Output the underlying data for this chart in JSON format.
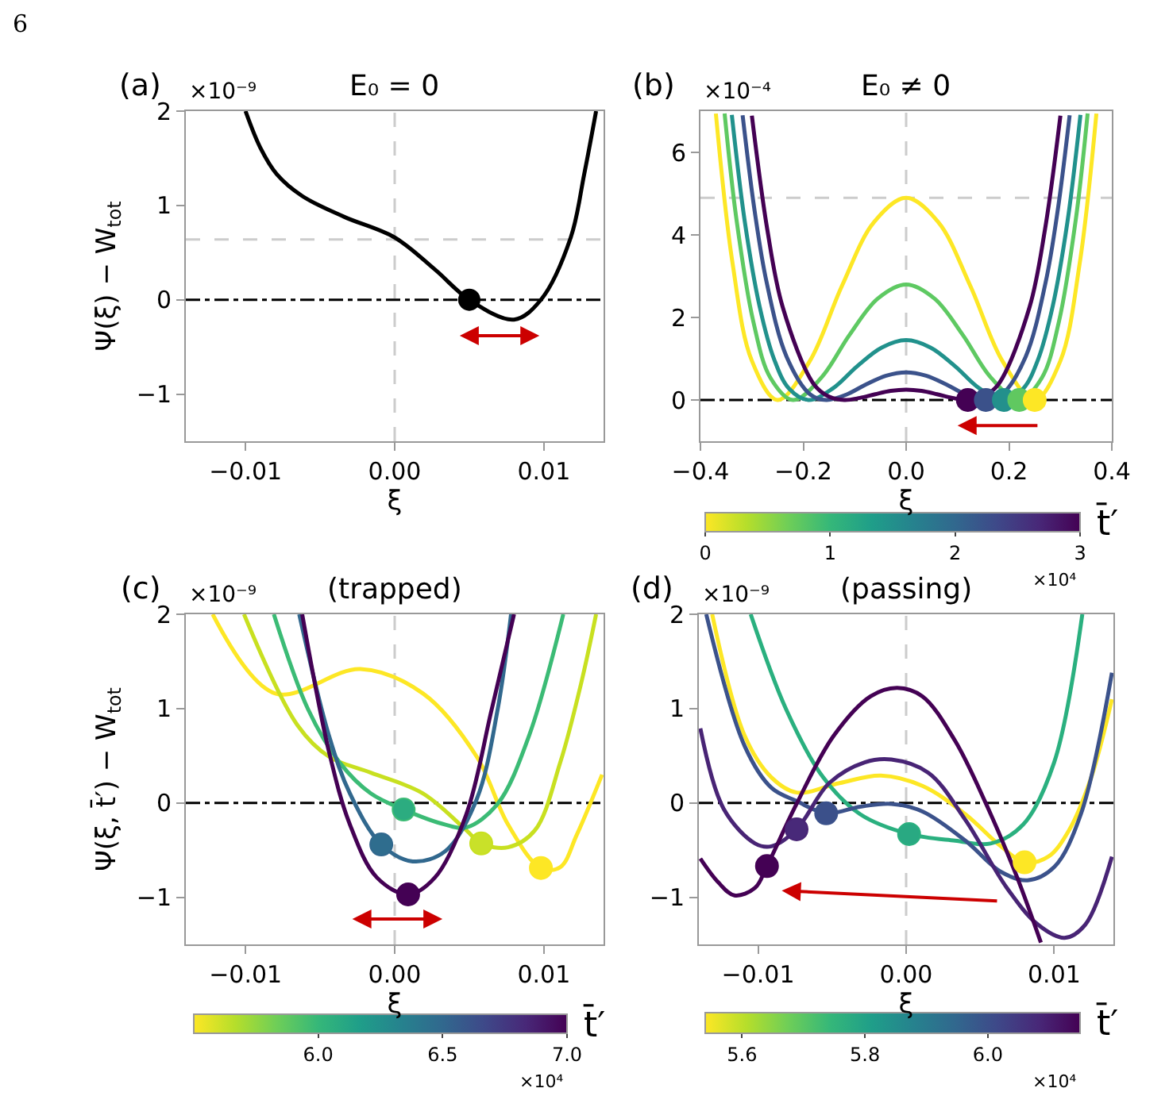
{
  "chart_data": [
    {
      "type": "line",
      "title": "E₀ = 0",
      "xlabel": "ξ",
      "ylabel": "Ψ(ξ) − W$_{tot}$",
      "xlim": [
        -0.014,
        0.014
      ],
      "xticks": [
        {
          "value": -0.01,
          "label": "−0.01"
        },
        {
          "value": 0,
          "label": "0.00"
        },
        {
          "value": 0.01,
          "label": "0.01"
        }
      ],
      "ylim": [
        -1.5,
        2
      ],
      "yticks": [
        -1,
        0,
        1,
        2
      ],
      "annotations": [
        "(a)",
        "×10⁻⁹",
        "6"
      ],
      "ref_lines": [
        {
          "axis": "y",
          "value": 0.64,
          "color": "#cccccc",
          "line_style": "dashed"
        },
        {
          "axis": "x",
          "value": 0,
          "color": "#cccccc",
          "line_style": "dashed"
        },
        {
          "axis": "y",
          "value": 0,
          "color": "#000000",
          "line_style": "dashdot"
        }
      ],
      "series": [
        {
          "color": "#000000",
          "x": [
            -0.01,
            -0.009,
            -0.0079,
            -0.0062,
            -0.0034,
            0,
            0.0027,
            0.005,
            0.008,
            0.0098,
            0.0118,
            0.0127,
            0.0135
          ],
          "values": [
            2.0,
            1.61,
            1.33,
            1.1,
            0.88,
            0.66,
            0.32,
            0,
            -0.21,
            0,
            0.66,
            1.33,
            2.0
          ]
        },
        {
          "type": "scatter",
          "marker": "circle",
          "color": "#000000",
          "x": [
            0.005
          ],
          "values": [
            0
          ]
        }
      ]
    },
    {
      "type": "line",
      "title": "E₀ ≠ 0",
      "xlabel": "ξ",
      "xlim": [
        -0.4,
        0.4
      ],
      "xticks": [
        {
          "value": -0.4,
          "label": "−0.4"
        },
        {
          "value": -0.2,
          "label": "−0.2"
        },
        {
          "value": 0,
          "label": "0.0"
        },
        {
          "value": 0.2,
          "label": "0.2"
        },
        {
          "value": 0.4,
          "label": "0.4"
        }
      ],
      "ylim": [
        -1,
        7
      ],
      "yticks": [
        0,
        2,
        4,
        6
      ],
      "clabel": "t̄′",
      "clim": [
        0,
        3
      ],
      "cticks": [
        0,
        1,
        2,
        3
      ],
      "annotations": [
        "(b)",
        "×10⁻⁴",
        "×10⁴"
      ],
      "ref_lines": [
        {
          "axis": "y",
          "value": 4.9,
          "color": "#cccccc",
          "line_style": "dashed"
        },
        {
          "axis": "x",
          "value": 0,
          "color": "#cccccc",
          "line_style": "dashed"
        },
        {
          "axis": "y",
          "value": 0,
          "color": "#000000",
          "line_style": "dashdot"
        }
      ],
      "series": [
        {
          "color": "#fde725",
          "x": [
            -0.37,
            -0.3375,
            -0.3,
            -0.25,
            -0.1875,
            -0.125,
            -0.0625,
            0,
            0.0625,
            0.125,
            0.1875,
            0.25,
            0.3,
            0.3375,
            0.37
          ],
          "values": [
            6.94,
            3.31,
            0.95,
            0,
            0.94,
            2.76,
            4.31,
            4.9,
            4.31,
            2.76,
            0.94,
            0,
            0.95,
            3.31,
            6.94
          ]
        },
        {
          "color": "#5ec962",
          "x": [
            -0.353,
            -0.33,
            -0.297,
            -0.264,
            -0.22,
            -0.165,
            -0.11,
            -0.055,
            0,
            0.055,
            0.11,
            0.165,
            0.22,
            0.264,
            0.297,
            0.33,
            0.353
          ],
          "values": [
            6.94,
            4.38,
            1.89,
            0.54,
            0,
            0.54,
            1.58,
            2.46,
            2.8,
            2.46,
            1.58,
            0.54,
            0,
            0.54,
            1.89,
            4.38,
            6.94
          ]
        },
        {
          "color": "#21918c",
          "x": [
            -0.339,
            -0.3135,
            -0.285,
            -0.2565,
            -0.228,
            -0.19,
            -0.1425,
            -0.095,
            -0.0475,
            0,
            0.0475,
            0.095,
            0.1425,
            0.19,
            0.228,
            0.2565,
            0.285,
            0.3135,
            0.339
          ],
          "values": [
            6.91,
            4.3,
            2.27,
            0.98,
            0.28,
            0,
            0.28,
            0.82,
            1.27,
            1.45,
            1.27,
            0.82,
            0.28,
            0,
            0.28,
            0.98,
            2.27,
            4.3,
            6.91
          ]
        },
        {
          "color": "#3b528b",
          "x": [
            -0.318,
            -0.2945,
            -0.27125,
            -0.2325,
            -0.186,
            -0.155,
            -0.11625,
            -0.0775,
            -0.03875,
            0,
            0.03875,
            0.0775,
            0.11625,
            0.155,
            0.186,
            0.2325,
            0.27125,
            0.2945,
            0.318
          ],
          "values": [
            6.9,
            4.57,
            2.85,
            1.05,
            0.13,
            0,
            0.13,
            0.38,
            0.59,
            0.67,
            0.59,
            0.38,
            0.13,
            0,
            0.13,
            1.05,
            2.85,
            4.57,
            6.9
          ]
        },
        {
          "color": "#440154",
          "x": [
            -0.3,
            -0.27,
            -0.24,
            -0.18,
            -0.15,
            -0.12,
            -0.09,
            -0.06,
            -0.03,
            0,
            0.03,
            0.06,
            0.09,
            0.12,
            0.15,
            0.18,
            0.24,
            0.27,
            0.3
          ],
          "values": [
            6.89,
            4.13,
            2.25,
            0.39,
            0.08,
            0,
            0.05,
            0.14,
            0.22,
            0.25,
            0.22,
            0.14,
            0.05,
            0,
            0.08,
            0.39,
            2.25,
            4.13,
            6.89
          ]
        },
        {
          "type": "scatter",
          "marker": "circle",
          "x": [
            0.12,
            0.155,
            0.19,
            0.22,
            0.25
          ],
          "values": [
            0,
            0,
            0,
            0,
            0
          ],
          "cvalues": [
            3,
            2.25,
            1.5,
            0.75,
            0
          ],
          "colors": [
            "#440154",
            "#3b528b",
            "#21918c",
            "#5ec962",
            "#fde725"
          ]
        }
      ]
    },
    {
      "type": "line",
      "title": "(trapped)",
      "xlabel": "ξ",
      "ylabel": "Ψ(ξ, t̄′) − W$_{tot}$",
      "xlim": [
        -0.014,
        0.014
      ],
      "xticks": [
        {
          "value": -0.01,
          "label": "−0.01"
        },
        {
          "value": 0,
          "label": "0.00"
        },
        {
          "value": 0.01,
          "label": "0.01"
        }
      ],
      "ylim": [
        -1.5,
        2
      ],
      "yticks": [
        -1,
        0,
        1,
        2
      ],
      "clabel": "t̄′",
      "clim": [
        5.5,
        7.0
      ],
      "cticks": [
        {
          "value": 6.0,
          "label": "6.0"
        },
        {
          "value": 6.5,
          "label": "6.5"
        },
        {
          "value": 7.0,
          "label": "7.0"
        }
      ],
      "annotations": [
        "(c)",
        "×10⁻⁹",
        "×10⁴"
      ],
      "ref_lines": [
        {
          "axis": "x",
          "value": 0,
          "color": "#cccccc",
          "line_style": "dashed"
        },
        {
          "axis": "y",
          "value": 0,
          "color": "#000000",
          "line_style": "dashdot"
        }
      ],
      "series": [
        {
          "color": "#fde725",
          "x": [
            -0.0122,
            -0.008,
            -0.0023,
            0.0019,
            0.0055,
            0.0076,
            0.0098,
            0.0111,
            0.0122,
            0.0139
          ],
          "values": [
            2.0,
            1.16,
            1.42,
            1.16,
            0.49,
            -0.23,
            -0.69,
            -0.68,
            -0.34,
            0.3
          ]
        },
        {
          "color": "#c8e020",
          "x": [
            -0.0101,
            -0.0065,
            -0.0044,
            -0.0016,
            0.0019,
            0.0048,
            0.0058,
            0.0076,
            0.0094,
            0.0111,
            0.0125,
            0.0135
          ],
          "values": [
            2.0,
            0.82,
            0.49,
            0.32,
            0.1,
            -0.29,
            -0.43,
            -0.47,
            -0.29,
            0.43,
            1.27,
            2.0
          ]
        },
        {
          "color": "#3bbb75",
          "x": [
            -0.0081,
            -0.0058,
            -0.0037,
            -0.0016,
            0.0006,
            0.0034,
            0.0048,
            0.0069,
            0.009,
            0.0113
          ],
          "values": [
            2.0,
            0.99,
            0.43,
            0.1,
            -0.07,
            -0.23,
            -0.26,
            -0.01,
            0.71,
            2.0
          ]
        },
        {
          "color": "#31688e",
          "x": [
            -0.0064,
            -0.0044,
            -0.003,
            -0.0009,
            0.0012,
            0.0034,
            0.0055,
            0.0069,
            0.0078
          ],
          "values": [
            2.0,
            0.71,
            0.1,
            -0.44,
            -0.62,
            -0.51,
            0.04,
            0.99,
            2.0
          ]
        },
        {
          "color": "#440154",
          "x": [
            -0.0062,
            -0.0044,
            -0.003,
            -0.0012,
            0.0009,
            0.0027,
            0.0048,
            0.0065,
            0.008
          ],
          "values": [
            2.0,
            0.54,
            -0.23,
            -0.79,
            -0.97,
            -0.79,
            -0.12,
            0.99,
            2.0
          ]
        },
        {
          "type": "scatter",
          "marker": "circle",
          "x": [
            0.0098,
            0.0058,
            0.0006,
            -0.0009,
            0.0009
          ],
          "values": [
            -0.69,
            -0.43,
            -0.07,
            -0.44,
            -0.97
          ],
          "cvalues": [
            5.5,
            5.62,
            6.07,
            6.47,
            7.0
          ],
          "colors": [
            "#fde725",
            "#c8e020",
            "#3bbb75",
            "#31688e",
            "#440154"
          ]
        }
      ]
    },
    {
      "type": "line",
      "title": "(passing)",
      "xlabel": "ξ",
      "xlim": [
        -0.014,
        0.014
      ],
      "xticks": [
        {
          "value": -0.01,
          "label": "−0.01"
        },
        {
          "value": 0,
          "label": "0.00"
        },
        {
          "value": 0.01,
          "label": "0.01"
        }
      ],
      "ylim": [
        -1.5,
        2
      ],
      "yticks": [
        -1,
        0,
        1,
        2
      ],
      "clabel": "t̄′",
      "clim": [
        5.54,
        6.15
      ],
      "cticks": [
        {
          "value": 5.6,
          "label": "5.6"
        },
        {
          "value": 5.8,
          "label": "5.8"
        },
        {
          "value": 6.0,
          "label": "6.0"
        }
      ],
      "annotations": [
        "(d)",
        "×10⁻⁹",
        "×10⁴"
      ],
      "ref_lines": [
        {
          "axis": "x",
          "value": 0,
          "color": "#cccccc",
          "line_style": "dashed"
        },
        {
          "axis": "y",
          "value": 0,
          "color": "#000000",
          "line_style": "dashdot"
        }
      ],
      "series": [
        {
          "color": "#fde725",
          "x": [
            -0.0131,
            -0.0109,
            -0.0091,
            -0.0074,
            -0.0045,
            -0.0017,
            0.0011,
            0.004,
            0.0064,
            0.008,
            0.0096,
            0.011,
            0.0125,
            0.0139
          ],
          "values": [
            2.0,
            0.71,
            0.27,
            0.11,
            0.21,
            0.29,
            0.18,
            -0.12,
            -0.46,
            -0.63,
            -0.57,
            -0.29,
            0.27,
            1.1
          ]
        },
        {
          "color": "#2ab07f",
          "x": [
            -0.0105,
            -0.0081,
            -0.0056,
            -0.0031,
            0.0002,
            0.0033,
            0.0057,
            0.0079,
            0.01,
            0.0119
          ],
          "values": [
            2.0,
            0.99,
            0.27,
            -0.12,
            -0.33,
            -0.4,
            -0.43,
            -0.23,
            0.43,
            2.0
          ]
        },
        {
          "color": "#3b528b",
          "x": [
            -0.0135,
            -0.0109,
            -0.0091,
            -0.0074,
            -0.0054,
            -0.0031,
            -0.001,
            0.0011,
            0.004,
            0.0064,
            0.0082,
            0.01,
            0.0118,
            0.0139
          ],
          "values": [
            2.0,
            0.6,
            0.16,
            0.02,
            -0.11,
            -0.04,
            -0.01,
            -0.09,
            -0.4,
            -0.73,
            -0.82,
            -0.68,
            -0.12,
            1.38
          ]
        },
        {
          "color": "#482475",
          "x": [
            -0.0139,
            -0.0123,
            -0.0102,
            -0.0091,
            -0.0074,
            -0.0052,
            -0.0028,
            -0.001,
            0.0015,
            0.004,
            0.0068,
            0.0089,
            0.0107,
            0.0121,
            0.0139
          ],
          "values": [
            0.79,
            -0.07,
            -0.43,
            -0.46,
            -0.28,
            0.21,
            0.43,
            0.46,
            0.32,
            -0.18,
            -0.9,
            -1.29,
            -1.43,
            -1.29,
            -0.57
          ]
        },
        {
          "color": "#440154",
          "x": [
            -0.0139,
            -0.0127,
            -0.0116,
            -0.0102,
            -0.0094,
            -0.0074,
            -0.0049,
            -0.0024,
            -0.0006,
            0.0011,
            0.0033,
            0.0054,
            0.0075,
            0.0091
          ],
          "values": [
            -0.59,
            -0.84,
            -0.98,
            -0.9,
            -0.67,
            -0.01,
            0.71,
            1.13,
            1.22,
            1.13,
            0.66,
            -0.01,
            -0.79,
            -1.48
          ]
        },
        {
          "type": "scatter",
          "marker": "circle",
          "x": [
            0.008,
            0.0002,
            -0.0054,
            -0.0074,
            -0.0094
          ],
          "values": [
            -0.63,
            -0.33,
            -0.11,
            -0.28,
            -0.67
          ],
          "cvalues": [
            5.54,
            5.78,
            6.0,
            6.08,
            6.15
          ],
          "colors": [
            "#fde725",
            "#2ab07f",
            "#3b528b",
            "#482475",
            "#440154"
          ]
        }
      ]
    }
  ]
}
